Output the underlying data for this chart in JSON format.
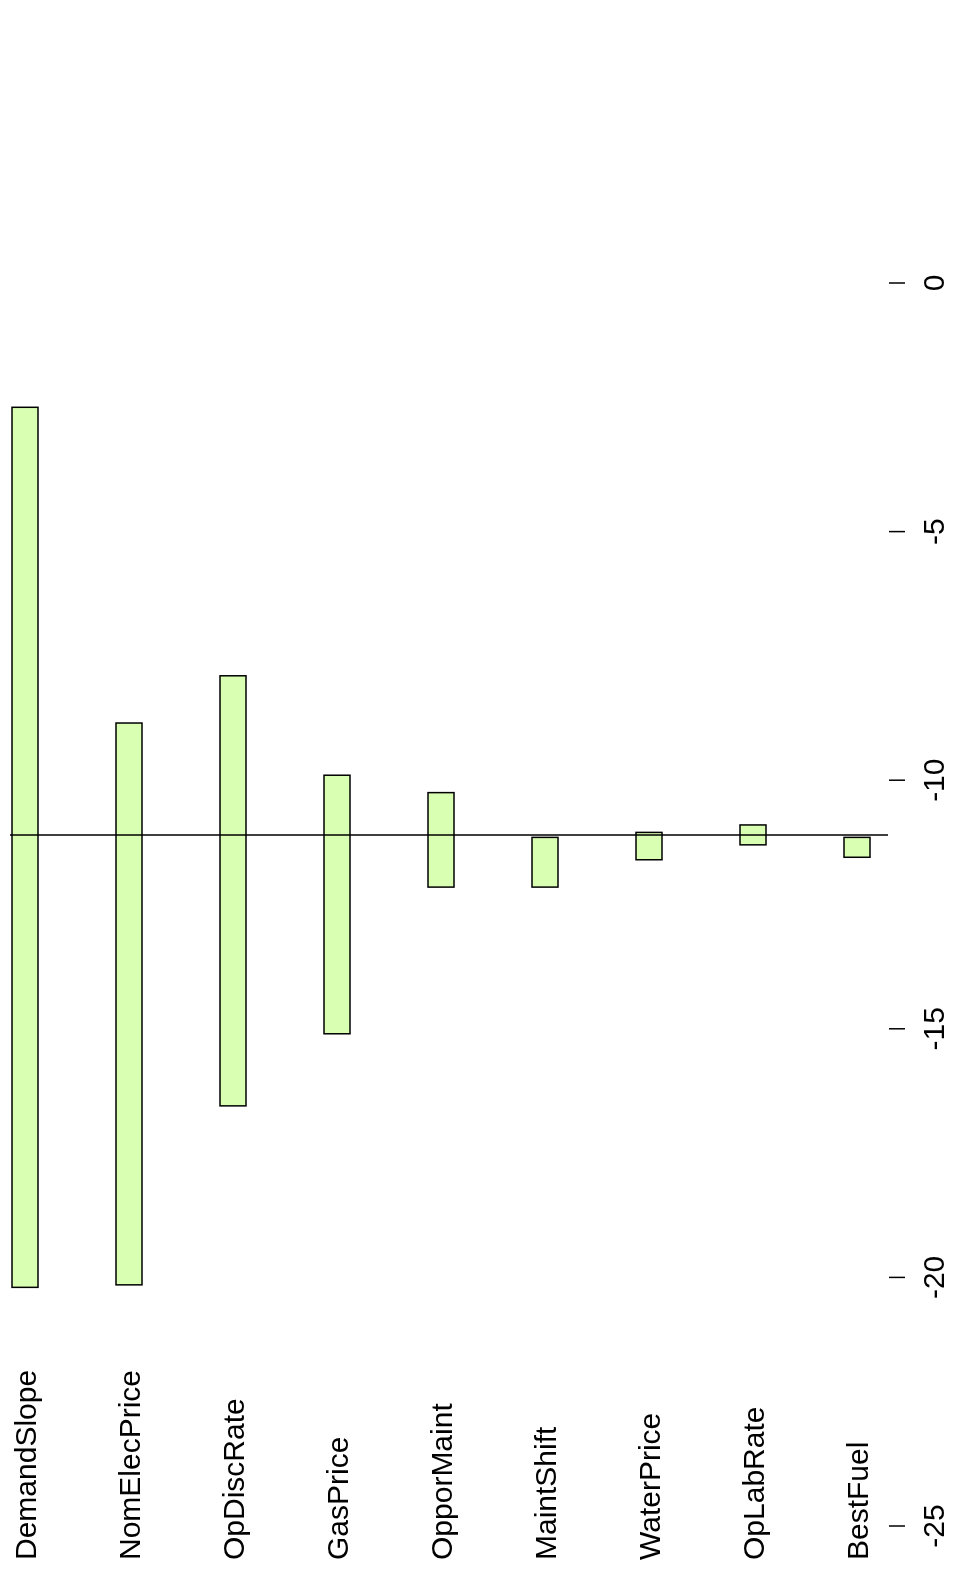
{
  "chart_data": {
    "type": "bar",
    "categories": [
      "DemandSlope",
      "NomElecPrice",
      "OpDiscRate",
      "GasPrice",
      "OpporMaint",
      "MaintShift",
      "WaterPrice",
      "OpLabRate",
      "BestFuel"
    ],
    "base": [
      -20.2,
      -20.15,
      -16.55,
      -15.1,
      -12.15,
      -12.15,
      -11.6,
      -11.3,
      -11.55
    ],
    "values": [
      17.7,
      11.3,
      8.65,
      5.2,
      1.9,
      1.0,
      0.55,
      0.4,
      0.4
    ],
    "color": "#d9ffb3",
    "ylim": [
      -25,
      0
    ],
    "yticks": [
      -25,
      -20,
      -15,
      -10,
      -5,
      0
    ],
    "ref_lines": [
      {
        "axis": "y",
        "value": -11.1
      }
    ]
  }
}
